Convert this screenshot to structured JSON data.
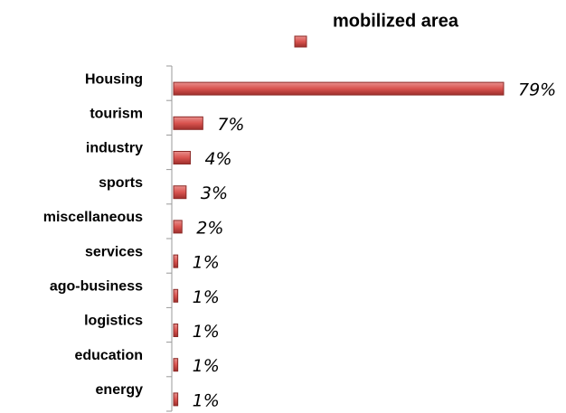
{
  "chart_data": {
    "type": "bar",
    "orientation": "horizontal",
    "categories": [
      "Housing",
      "tourism",
      "industry",
      "sports",
      "miscellaneous",
      "services",
      "ago-business",
      "logistics",
      "education",
      "energy"
    ],
    "series": [
      {
        "name": "mobilized area",
        "color": "#c0504d",
        "values": [
          79,
          7,
          4,
          3,
          2,
          1,
          1,
          1,
          1,
          1
        ],
        "value_labels": [
          "79%",
          "7%",
          "4%",
          "3%",
          "2%",
          "1%",
          "1%",
          "1%",
          "1%",
          "1%"
        ]
      }
    ]
  }
}
